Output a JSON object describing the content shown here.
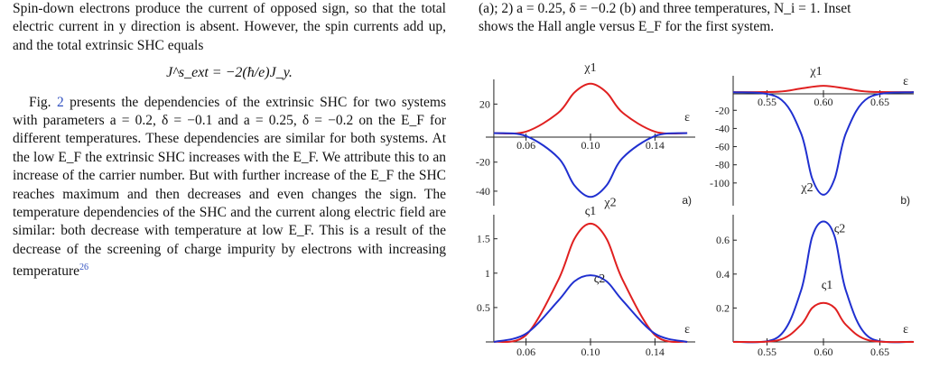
{
  "left_text": {
    "para1": "Spin-down electrons produce the current of opposed sign, so that the total electric current in y direction is absent. However, the spin currents add up, and the total extrinsic SHC equals",
    "equation": "J^s_ext = −2(ħ/e)J_y.",
    "para2_a": "Fig. ",
    "para2_ref": "2",
    "para2_b": " presents the dependencies of the extrinsic SHC for two systems with parameters a = 0.2, δ = −0.1 and a = 0.25, δ = −0.2 on the E_F for different temperatures. These dependencies are similar for both systems. At the low E_F the extrinsic SHC increases with the E_F. We attribute this to an increase of the carrier number. But with further increase of the E_F the SHC reaches maximum and then decreases and even changes the sign. The temperature dependencies of the SHC and the current along electric field are similar: both decrease with temperature at low E_F. This is a result of the decrease of the screening of charge impurity by electrons with increasing temperature",
    "para2_cite": "26"
  },
  "caption": {
    "line1": "(a); 2) a = 0.25, δ = −0.2 (b) and three temperatures, N_i = 1. Inset",
    "line2": "shows the Hall angle versus E_F for the first system."
  },
  "chart_data": [
    {
      "type": "line",
      "panel": "a-top",
      "xlabel": "ε",
      "xticks": [
        0.06,
        0.1,
        0.14
      ],
      "yticks": [
        20,
        -20,
        -40
      ],
      "series": [
        {
          "name": "χ1",
          "color": "#e02020",
          "x": [
            0.04,
            0.06,
            0.08,
            0.09,
            0.1,
            0.11,
            0.12,
            0.14,
            0.16
          ],
          "y": [
            0,
            1,
            14,
            28,
            34,
            28,
            14,
            1,
            0
          ]
        },
        {
          "name": "χ2",
          "color": "#2030d0",
          "x": [
            0.04,
            0.06,
            0.08,
            0.09,
            0.1,
            0.11,
            0.12,
            0.14,
            0.16
          ],
          "y": [
            0,
            -2,
            -17,
            -36,
            -44,
            -36,
            -17,
            -2,
            0
          ]
        }
      ]
    },
    {
      "type": "line",
      "panel": "a-bottom",
      "label": "a)",
      "xlabel": "ε",
      "xticks": [
        0.06,
        0.1,
        0.14
      ],
      "yticks": [
        0.5,
        1.0,
        1.5
      ],
      "series": [
        {
          "name": "ς1",
          "color": "#e02020",
          "x": [
            0.04,
            0.06,
            0.08,
            0.09,
            0.1,
            0.11,
            0.12,
            0.14,
            0.16
          ],
          "y": [
            0,
            0.1,
            0.9,
            1.5,
            1.72,
            1.5,
            0.9,
            0.1,
            0
          ]
        },
        {
          "name": "ς2",
          "color": "#2030d0",
          "x": [
            0.04,
            0.06,
            0.08,
            0.09,
            0.1,
            0.11,
            0.12,
            0.14,
            0.16
          ],
          "y": [
            0,
            0.12,
            0.6,
            0.88,
            0.97,
            0.88,
            0.6,
            0.12,
            0
          ]
        }
      ]
    },
    {
      "type": "line",
      "panel": "b-top",
      "xlabel": "ε",
      "xticks": [
        0.55,
        0.6,
        0.65
      ],
      "yticks": [
        -20,
        -40,
        -60,
        -80,
        -100
      ],
      "series": [
        {
          "name": "χ1",
          "color": "#e02020",
          "x": [
            0.52,
            0.56,
            0.58,
            0.6,
            0.62,
            0.64,
            0.68
          ],
          "y": [
            0,
            0.5,
            4,
            7,
            4,
            0.5,
            0
          ]
        },
        {
          "name": "χ2",
          "color": "#2030d0",
          "x": [
            0.52,
            0.56,
            0.58,
            0.59,
            0.6,
            0.61,
            0.62,
            0.64,
            0.68
          ],
          "y": [
            0,
            -6,
            -45,
            -95,
            -113,
            -95,
            -45,
            -6,
            0
          ]
        }
      ]
    },
    {
      "type": "line",
      "panel": "b-bottom",
      "label": "b)",
      "xlabel": "ε",
      "xticks": [
        0.55,
        0.6,
        0.65
      ],
      "yticks": [
        0.2,
        0.4,
        0.6
      ],
      "series": [
        {
          "name": "ς2",
          "color": "#2030d0",
          "x": [
            0.52,
            0.56,
            0.58,
            0.59,
            0.6,
            0.61,
            0.62,
            0.64,
            0.68
          ],
          "y": [
            0,
            0.03,
            0.3,
            0.62,
            0.71,
            0.62,
            0.3,
            0.03,
            0
          ]
        },
        {
          "name": "ς1",
          "color": "#e02020",
          "x": [
            0.52,
            0.56,
            0.58,
            0.59,
            0.6,
            0.61,
            0.62,
            0.64,
            0.68
          ],
          "y": [
            0,
            0.01,
            0.1,
            0.2,
            0.23,
            0.2,
            0.1,
            0.01,
            0
          ]
        }
      ]
    }
  ]
}
